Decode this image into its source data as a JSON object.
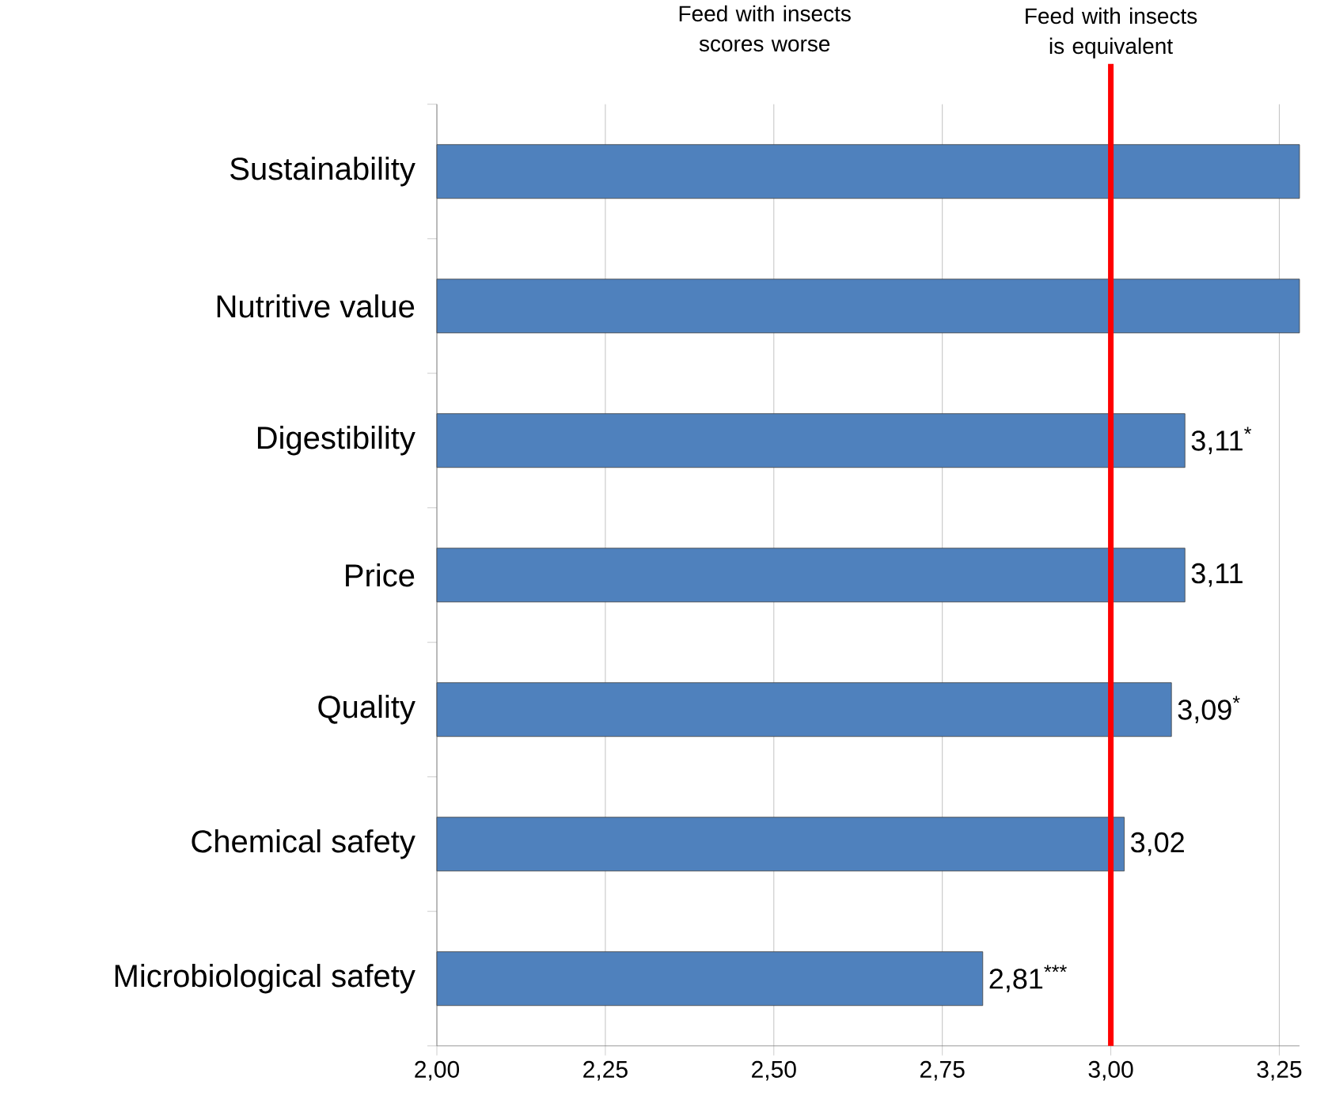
{
  "chart_data": {
    "type": "bar",
    "orientation": "horizontal",
    "categories": [
      "Sustainability",
      "Nutritive value",
      "Digestibility",
      "Price",
      "Quality",
      "Chemical safety",
      "Microbiological safety"
    ],
    "values": [
      3.28,
      3.28,
      3.11,
      3.11,
      3.09,
      3.02,
      2.81
    ],
    "value_labels": [
      null,
      null,
      "3,11$^{*}$",
      "3,11",
      "3,09$^{*}$",
      "3,02",
      "2,81$^{***}$"
    ],
    "color": "#4f81bd",
    "xlim": [
      2,
      3.28
    ],
    "xticks": [
      {
        "value": 2,
        "label": "2,00"
      },
      {
        "value": 2.25,
        "label": "2,25"
      },
      {
        "value": 2.5,
        "label": "2,50"
      },
      {
        "value": 2.75,
        "label": "2,75"
      },
      {
        "value": 3,
        "label": "3,00"
      },
      {
        "value": 3.25,
        "label": "3,25"
      }
    ],
    "grid": "x",
    "ref_lines": [
      {
        "axis": "x",
        "value": 3,
        "label": "Feed with insects is equivalent",
        "color": "#ff0000"
      }
    ],
    "annotations": [
      "Feed with insects scores worse"
    ]
  }
}
